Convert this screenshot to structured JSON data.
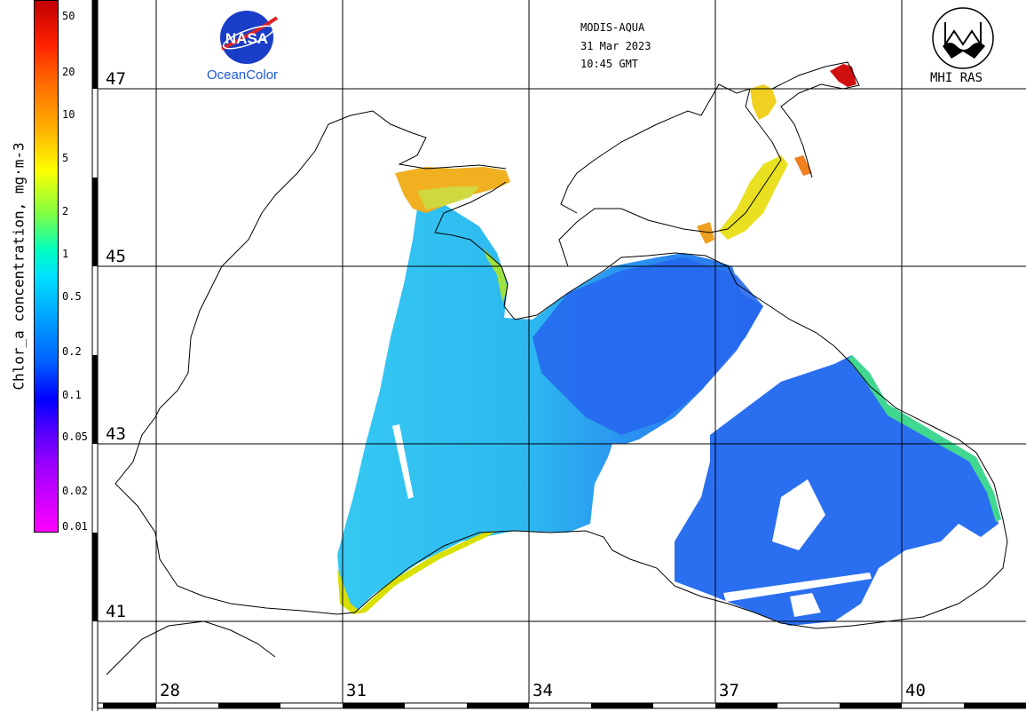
{
  "header": {
    "sensor": "MODIS-AQUA",
    "date": "31 Mar 2023",
    "time": "10:45 GMT"
  },
  "logos": {
    "left_org": "NASA",
    "left_caption": "OceanColor",
    "right_caption": "MHI RAS"
  },
  "colorbar": {
    "title": "Chlor_a concentration, mg·m-3",
    "ticks": [
      "50",
      "20",
      "10",
      "5",
      "2",
      "1",
      "0.5",
      "0.2",
      "0.1",
      "0.05",
      "0.02",
      "0.01"
    ]
  },
  "grid": {
    "latitudes": [
      "47",
      "45",
      "43",
      "41"
    ],
    "longitudes": [
      "28",
      "31",
      "34",
      "37",
      "40"
    ]
  },
  "colors": {
    "coast": "#000000",
    "grid": "#000000",
    "open_sea": "#33c8f0",
    "deep_blue": "#1f5ff0",
    "coastal_green": "#40e080",
    "coastal_yellow": "#f0d000",
    "azov_red": "#d01010"
  }
}
